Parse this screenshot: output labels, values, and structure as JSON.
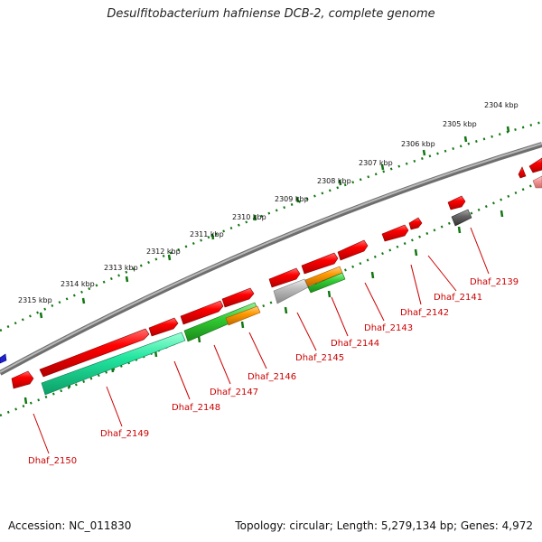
{
  "title": "Desulfitobacterium hafniense DCB-2, complete genome",
  "footer": {
    "accession": "Accession: NC_011830",
    "topology": "Topology: circular; Length: 5,279,134 bp; Genes: 4,972"
  },
  "scale": {
    "ticks": [
      {
        "label": "2304 kbp"
      },
      {
        "label": "2305 kbp"
      },
      {
        "label": "2306 kbp"
      },
      {
        "label": "2307 kbp"
      },
      {
        "label": "2308 kbp"
      },
      {
        "label": "2309 kbp"
      },
      {
        "label": "2310 kbp"
      },
      {
        "label": "2311 kbp"
      },
      {
        "label": "2312 kbp"
      },
      {
        "label": "2313 kbp"
      },
      {
        "label": "2314 kbp"
      },
      {
        "label": "2315 kbp"
      }
    ]
  },
  "genes": [
    {
      "locus": "Dhaf_2139"
    },
    {
      "locus": "Dhaf_2141"
    },
    {
      "locus": "Dhaf_2142"
    },
    {
      "locus": "Dhaf_2143"
    },
    {
      "locus": "Dhaf_2144"
    },
    {
      "locus": "Dhaf_2145"
    },
    {
      "locus": "Dhaf_2146"
    },
    {
      "locus": "Dhaf_2147"
    },
    {
      "locus": "Dhaf_2148"
    },
    {
      "locus": "Dhaf_2149"
    },
    {
      "locus": "Dhaf_2150"
    }
  ],
  "colors": {
    "cds_forward": "#ff0000",
    "cds_reverse_teal": "#22e6a0",
    "cds_green": "#33cc33",
    "cds_orange": "#ff9900",
    "cds_grey": "#bbbbbb",
    "label": "#cc0000",
    "tick": "#117711",
    "backbone": "#888888"
  }
}
